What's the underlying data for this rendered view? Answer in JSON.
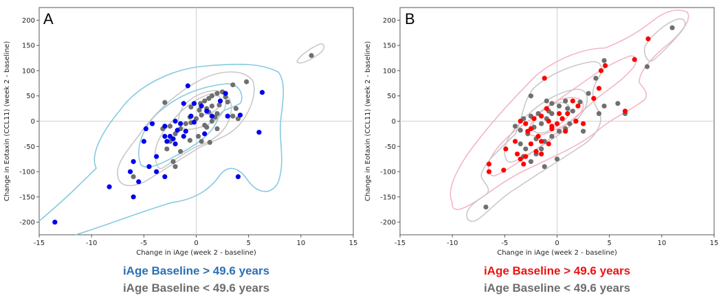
{
  "colors": {
    "gray": "#6f6f6f",
    "blue": "#0000ee",
    "red": "#ff0000",
    "light_blue": "#86c9e2",
    "pink": "#f4b6c2",
    "contour_gray": "#c8c8c8",
    "legend_blue": "#2b6fb3",
    "legend_red": "#ee1111",
    "legend_gray": "#6d6d6d"
  },
  "chart_data": [
    {
      "panel": "A",
      "type": "scatter",
      "xlabel": "Change in iAge (week 2 - baseline)",
      "ylabel": "Change in Eotaxin (CCL11) (week 2 - baseline)",
      "xlim": [
        -15,
        15
      ],
      "ylim": [
        -225,
        225
      ],
      "xticks": [
        "-15",
        "-10",
        "-5",
        "0",
        "5",
        "10",
        "15"
      ],
      "yticks": [
        "-200",
        "-150",
        "-100",
        "-50",
        "0",
        "50",
        "100",
        "150",
        "200"
      ],
      "legend": {
        "high": "iAge Baseline > 49.6 years",
        "low": "iAge Baseline < 49.6 years"
      },
      "series": [
        {
          "name": "iAge Baseline < 49.6 years",
          "color_key": "gray",
          "points": [
            [
              11,
              130
            ],
            [
              4.8,
              78
            ],
            [
              3.5,
              72
            ],
            [
              2.5,
              58
            ],
            [
              2,
              55
            ],
            [
              1.5,
              50
            ],
            [
              2.8,
              48
            ],
            [
              1.2,
              45
            ],
            [
              0.8,
              40
            ],
            [
              3,
              38
            ],
            [
              0.4,
              35
            ],
            [
              2.2,
              32
            ],
            [
              1.5,
              30
            ],
            [
              3.8,
              25
            ],
            [
              -0.5,
              28
            ],
            [
              0.3,
              22
            ],
            [
              1.2,
              18
            ],
            [
              2,
              15
            ],
            [
              3.5,
              10
            ],
            [
              4,
              5
            ],
            [
              0.5,
              12
            ],
            [
              1.8,
              8
            ],
            [
              0,
              5
            ],
            [
              1.5,
              0
            ],
            [
              -0.5,
              -3
            ],
            [
              0.8,
              -8
            ],
            [
              1,
              -12
            ],
            [
              2,
              -15
            ],
            [
              -1,
              -5
            ],
            [
              -1.5,
              -15
            ],
            [
              -2.5,
              -10
            ],
            [
              -3.2,
              -15
            ],
            [
              -2,
              -25
            ],
            [
              0.2,
              -30
            ],
            [
              -0.6,
              -38
            ],
            [
              0.5,
              -40
            ],
            [
              1.3,
              -42
            ],
            [
              -2.5,
              -40
            ],
            [
              -2.8,
              -55
            ],
            [
              -1.5,
              -60
            ],
            [
              -2.2,
              -80
            ],
            [
              -2,
              -90
            ],
            [
              -6,
              -110
            ],
            [
              -3,
              37
            ],
            [
              -0.6,
              8
            ],
            [
              1,
              25
            ]
          ]
        },
        {
          "name": "iAge Baseline > 49.6 years",
          "color_key": "blue",
          "points": [
            [
              -13.5,
              -200
            ],
            [
              -8.3,
              -130
            ],
            [
              -6,
              -150
            ],
            [
              -5.5,
              -120
            ],
            [
              -6.3,
              -100
            ],
            [
              -6,
              -80
            ],
            [
              -5,
              -40
            ],
            [
              -4.8,
              -15
            ],
            [
              -4.2,
              -5
            ],
            [
              -3,
              -10
            ],
            [
              -2,
              0
            ],
            [
              -2.2,
              -35
            ],
            [
              -2,
              -45
            ],
            [
              -1.5,
              -5
            ],
            [
              -1.8,
              -18
            ],
            [
              -3,
              -30
            ],
            [
              -3.8,
              -70
            ],
            [
              -4.5,
              -90
            ],
            [
              -3.8,
              -100
            ],
            [
              -3,
              -110
            ],
            [
              -2.5,
              -30
            ],
            [
              -1,
              -20
            ],
            [
              -0.5,
              10
            ],
            [
              -0.2,
              35
            ],
            [
              0.5,
              30
            ],
            [
              1,
              20
            ],
            [
              1.5,
              10
            ],
            [
              -0.8,
              70
            ],
            [
              -1.2,
              35
            ],
            [
              2.3,
              40
            ],
            [
              2.8,
              55
            ],
            [
              3,
              10
            ],
            [
              4,
              -110
            ],
            [
              4.2,
              12
            ],
            [
              6,
              -22
            ],
            [
              6.3,
              57
            ],
            [
              -0.2,
              -2
            ],
            [
              0.8,
              -25
            ],
            [
              -2.8,
              -40
            ],
            [
              -1.2,
              -30
            ]
          ]
        }
      ]
    },
    {
      "panel": "B",
      "type": "scatter",
      "xlabel": "Change in iAge (week 2 - baseline)",
      "ylabel": "Change in Eotaxin (CCL11) (week 2 - baseline)",
      "xlim": [
        -15,
        15
      ],
      "ylim": [
        -225,
        225
      ],
      "xticks": [
        "-15",
        "-10",
        "-5",
        "0",
        "5",
        "10",
        "15"
      ],
      "yticks": [
        "-200",
        "-150",
        "-100",
        "-50",
        "0",
        "50",
        "100",
        "150",
        "200"
      ],
      "legend": {
        "high": "iAge Baseline > 49.6 years",
        "low": "iAge Baseline < 49.6 years"
      },
      "series": [
        {
          "name": "iAge Baseline < 49.6 years",
          "color_key": "gray",
          "points": [
            [
              11,
              185
            ],
            [
              4.5,
              120
            ],
            [
              8.6,
              108
            ],
            [
              3.7,
              85
            ],
            [
              3,
              55
            ],
            [
              -2.5,
              50
            ],
            [
              -1,
              40
            ],
            [
              -0.5,
              35
            ],
            [
              0.2,
              30
            ],
            [
              1,
              25
            ],
            [
              1.5,
              20
            ],
            [
              -0.8,
              20
            ],
            [
              -1.8,
              15
            ],
            [
              -2.5,
              10
            ],
            [
              -3.2,
              5
            ],
            [
              0.5,
              5
            ],
            [
              1.8,
              0
            ],
            [
              -1.5,
              -5
            ],
            [
              -4,
              -10
            ],
            [
              -3.5,
              -18
            ],
            [
              -2.8,
              -25
            ],
            [
              -2,
              -35
            ],
            [
              -1.2,
              -40
            ],
            [
              -0.5,
              -30
            ],
            [
              0.2,
              -20
            ],
            [
              0.8,
              -15
            ],
            [
              1.2,
              -5
            ],
            [
              2.5,
              -20
            ],
            [
              4,
              15
            ],
            [
              4.5,
              30
            ],
            [
              5.8,
              35
            ],
            [
              6.5,
              15
            ],
            [
              -3.5,
              -45
            ],
            [
              -3,
              -55
            ],
            [
              -1.5,
              -55
            ],
            [
              -2,
              -65
            ],
            [
              -3.2,
              -70
            ],
            [
              -2.5,
              -80
            ],
            [
              -1.2,
              -90
            ],
            [
              0,
              -75
            ],
            [
              -6.8,
              -170
            ],
            [
              -0.5,
              15
            ],
            [
              0.8,
              40
            ],
            [
              2.2,
              38
            ],
            [
              -1,
              5
            ],
            [
              -2.2,
              -12
            ]
          ]
        },
        {
          "name": "iAge Baseline > 49.6 years",
          "color_key": "red",
          "points": [
            [
              -6.5,
              -85
            ],
            [
              -6.5,
              -100
            ],
            [
              -5.1,
              -97
            ],
            [
              -4.9,
              -55
            ],
            [
              -3.8,
              -65
            ],
            [
              -3.5,
              -75
            ],
            [
              -3.2,
              -85
            ],
            [
              -3,
              -70
            ],
            [
              -2.5,
              -45
            ],
            [
              -2,
              -60
            ],
            [
              -1.5,
              -40
            ],
            [
              -1.8,
              -30
            ],
            [
              -2.5,
              -15
            ],
            [
              -3,
              -5
            ],
            [
              -3.5,
              0
            ],
            [
              -2.2,
              5
            ],
            [
              -1.5,
              10
            ],
            [
              -1,
              25
            ],
            [
              -0.8,
              0
            ],
            [
              -0.5,
              -10
            ],
            [
              0,
              -5
            ],
            [
              0.5,
              5
            ],
            [
              1,
              15
            ],
            [
              1.5,
              40
            ],
            [
              2,
              30
            ],
            [
              2.5,
              -5
            ],
            [
              0.8,
              -20
            ],
            [
              -1.2,
              85
            ],
            [
              -0.5,
              -15
            ],
            [
              3.5,
              45
            ],
            [
              4,
              65
            ],
            [
              4.2,
              100
            ],
            [
              4.6,
              110
            ],
            [
              6.5,
              20
            ],
            [
              7.4,
              122
            ],
            [
              8.7,
              163
            ],
            [
              -0.8,
              -45
            ],
            [
              1.8,
              0
            ],
            [
              -1.5,
              -65
            ],
            [
              -2.8,
              -20
            ],
            [
              -4,
              -40
            ],
            [
              0.2,
              15
            ]
          ]
        }
      ]
    }
  ]
}
